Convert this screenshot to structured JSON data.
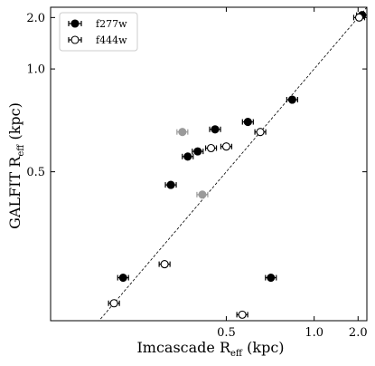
{
  "chart_data": {
    "type": "scatter",
    "xlabel": {
      "main": "Imcascade R",
      "sub": "eff",
      "unit": " (kpc)"
    },
    "ylabel": {
      "main": "GALFIT R",
      "sub": "eff",
      "unit": " (kpc)"
    },
    "xscale": "reciprocal",
    "yscale": "reciprocal",
    "xlim": [
      0.25,
      2.5
    ],
    "ylim": [
      0.29,
      2.5
    ],
    "xticks": [
      0.5,
      1.0,
      2.0
    ],
    "yticks": [
      0.5,
      1.0,
      2.0
    ],
    "xtick_labels": [
      "0.5",
      "1.0",
      "2.0"
    ],
    "ytick_labels": [
      "0.5",
      "1.0",
      "2.0"
    ],
    "one_to_one_line": true,
    "grid": false,
    "legend_position": "top-left",
    "colors": {
      "filled": "#000000",
      "open_edge": "#000000",
      "gray": "#9a9a9a"
    },
    "series": [
      {
        "name": "f277w",
        "marker": "filled-circle",
        "points": [
          {
            "x": 2.2,
            "y": 2.1
          },
          {
            "x": 0.8,
            "y": 0.77
          },
          {
            "x": 0.57,
            "y": 0.66
          },
          {
            "x": 0.47,
            "y": 0.63
          },
          {
            "x": 0.41,
            "y": 0.54
          },
          {
            "x": 0.43,
            "y": 0.555
          },
          {
            "x": 0.38,
            "y": 0.47
          },
          {
            "x": 0.315,
            "y": 0.33
          },
          {
            "x": 0.67,
            "y": 0.33
          }
        ]
      },
      {
        "name": "f444w",
        "marker": "open-circle",
        "points": [
          {
            "x": 2.05,
            "y": 2.0
          },
          {
            "x": 0.62,
            "y": 0.62
          },
          {
            "x": 0.5,
            "y": 0.57
          },
          {
            "x": 0.46,
            "y": 0.565
          },
          {
            "x": 0.37,
            "y": 0.345
          },
          {
            "x": 0.305,
            "y": 0.305
          },
          {
            "x": 0.55,
            "y": 0.295
          }
        ]
      },
      {
        "marker": "gray-circle",
        "points": [
          {
            "x": 0.4,
            "y": 0.62
          },
          {
            "x": 0.44,
            "y": 0.45
          }
        ]
      }
    ]
  }
}
